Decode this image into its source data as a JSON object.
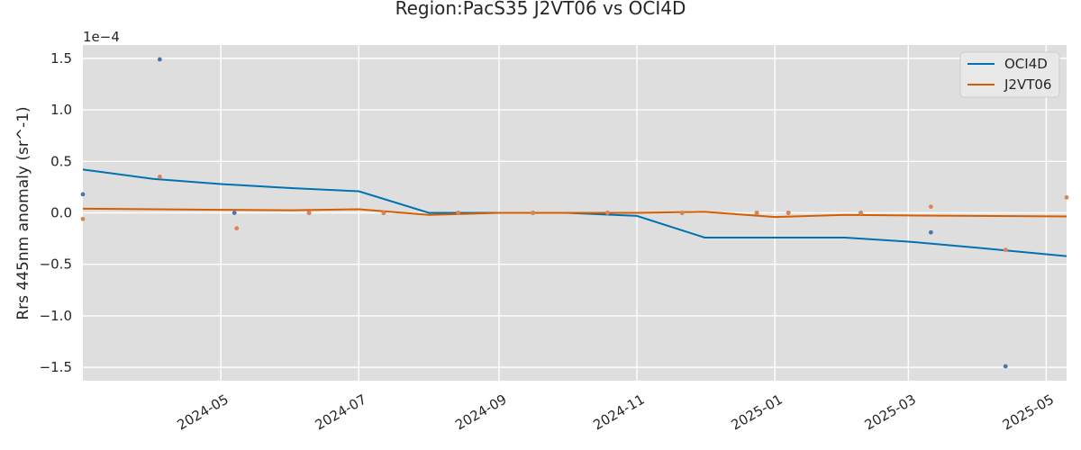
{
  "chart_data": {
    "type": "line",
    "title": "Region:PacS35 J2VT06 vs OCI4D",
    "xlabel": "",
    "ylabel": "Rrs 445nm anomaly (sr^-1)",
    "y_scale_label": "1e−4",
    "y_scale_factor": 0.0001,
    "xlim": [
      "2024-03-01",
      "2025-05-10"
    ],
    "ylim": [
      -1.63,
      1.63
    ],
    "x_ticks": [
      "2024-05-01",
      "2024-07-01",
      "2024-09-01",
      "2024-11-01",
      "2025-01-01",
      "2025-03-01",
      "2025-05-01"
    ],
    "x_tick_labels": [
      "2024-05",
      "2024-07",
      "2024-09",
      "2024-11",
      "2025-01",
      "2025-03",
      "2025-05"
    ],
    "y_ticks": [
      -1.5,
      -1.0,
      -0.5,
      0.0,
      0.5,
      1.0,
      1.5
    ],
    "y_tick_labels": [
      "−1.5",
      "−1.0",
      "−0.5",
      "0.0",
      "0.5",
      "1.0",
      "1.5"
    ],
    "grid": true,
    "legend_position": "top-right",
    "background": "#dedede",
    "series": [
      {
        "name": "OCI4D",
        "color": "#0072b2",
        "x": [
          "2024-03-01",
          "2024-04-01",
          "2024-05-01",
          "2024-06-01",
          "2024-07-01",
          "2024-08-01",
          "2024-09-01",
          "2024-10-01",
          "2024-11-01",
          "2024-12-01",
          "2025-01-01",
          "2025-02-01",
          "2025-03-01",
          "2025-04-01",
          "2025-05-10"
        ],
        "y": [
          0.42,
          0.33,
          0.28,
          0.24,
          0.21,
          0.0,
          0.0,
          0.0,
          -0.03,
          -0.24,
          -0.24,
          -0.24,
          -0.28,
          -0.34,
          -0.42
        ]
      },
      {
        "name": "J2VT06",
        "color": "#d55e00",
        "x": [
          "2024-03-01",
          "2024-04-01",
          "2024-05-01",
          "2024-06-01",
          "2024-07-01",
          "2024-08-01",
          "2024-09-01",
          "2024-10-01",
          "2024-11-01",
          "2024-12-01",
          "2025-01-01",
          "2025-02-01",
          "2025-03-01",
          "2025-04-01",
          "2025-05-10"
        ],
        "y": [
          0.04,
          0.035,
          0.03,
          0.025,
          0.035,
          -0.02,
          0.0,
          0.0,
          0.0,
          0.01,
          -0.04,
          -0.02,
          -0.025,
          -0.03,
          -0.035
        ]
      }
    ],
    "scatter": [
      {
        "color": "#4c72b0",
        "x": [
          "2024-03-01",
          "2024-04-04",
          "2024-05-07",
          "2024-06-09",
          "2024-07-12",
          "2024-08-14",
          "2024-09-16",
          "2024-10-19",
          "2024-11-21",
          "2024-12-24",
          "2025-01-07",
          "2025-02-08",
          "2025-03-11",
          "2025-04-13"
        ],
        "y": [
          0.18,
          1.49,
          0.0,
          0.0,
          0.0,
          0.0,
          0.0,
          0.0,
          0.0,
          0.0,
          0.0,
          0.0,
          -0.19,
          -1.49
        ]
      },
      {
        "color": "#dd8452",
        "x": [
          "2024-03-01",
          "2024-04-04",
          "2024-05-08",
          "2024-06-09",
          "2024-07-12",
          "2024-08-14",
          "2024-09-16",
          "2024-10-19",
          "2024-11-21",
          "2024-12-24",
          "2025-01-07",
          "2025-02-08",
          "2025-03-11",
          "2025-04-13",
          "2025-05-10"
        ],
        "y": [
          -0.06,
          0.35,
          -0.15,
          0.0,
          0.0,
          0.0,
          0.0,
          0.0,
          0.0,
          0.0,
          0.0,
          0.0,
          0.06,
          -0.36,
          0.15
        ]
      }
    ]
  }
}
